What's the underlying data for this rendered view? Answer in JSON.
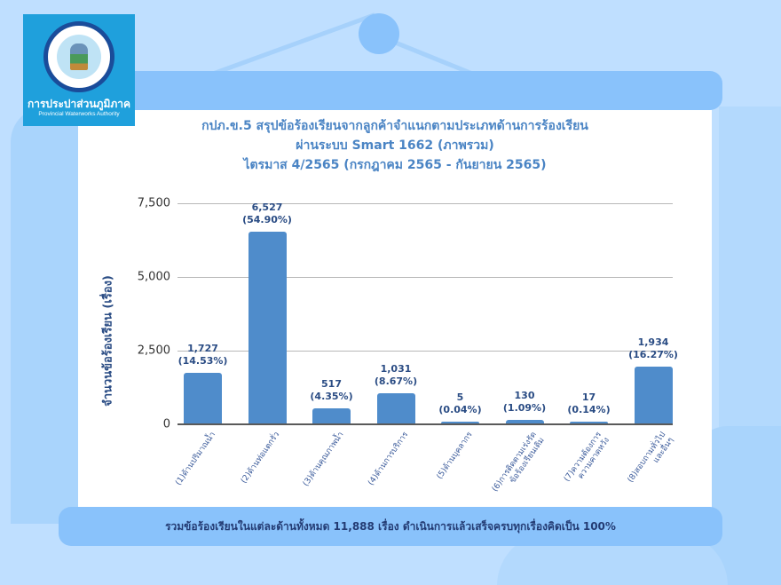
{
  "logo": {
    "title": "การประปาส่วนภูมิภาค",
    "subtitle": "Provincial Waterworks Authority"
  },
  "title": {
    "line1": "กปภ.ข.5 สรุปข้อร้องเรียนจากลูกค้าจำแนกตามประเภทด้านการร้องเรียน",
    "line2": "ผ่านระบบ Smart 1662 (ภาพรวม)",
    "line3": "ไตรมาส 4/2565 (กรกฎาคม 2565 - กันยายน 2565)"
  },
  "footer": {
    "summary": "รวมข้อร้องเรียนในแต่ละด้านทั้งหมด 11,888 เรื่อง ดำเนินการแล้วเสร็จครบทุกเรื่องคิดเป็น 100%"
  },
  "colors": {
    "bar": "#4f8ccb",
    "title": "#4a84c4",
    "label": "#2a4c84",
    "background": "#bfdfff",
    "accent": "#89c2fb"
  },
  "chart_data": {
    "type": "bar",
    "title": "กปภ.ข.5 สรุปข้อร้องเรียนจากลูกค้าจำแนกตามประเภทด้านการร้องเรียน ผ่านระบบ Smart 1662 (ภาพรวม) ไตรมาส 4/2565 (กรกฎาคม 2565 - กันยายน 2565)",
    "xlabel": "",
    "ylabel": "จำนวนข้อร้องเรียน (เรื่อง)",
    "ylim": [
      0,
      7500
    ],
    "yticks": [
      "0",
      "2,500",
      "5,000",
      "7,500"
    ],
    "grid": true,
    "legend": "none",
    "categories": [
      "(1)ด้านปริมาณน้ำ",
      "(2)ด้านท่อแตกรั่ว",
      "(3)ด้านคุณภาพน้ำ",
      "(4)ด้านการบริการ",
      "(5)ด้านบุคลากร",
      "(6)การติดตามเร่งรัด ข้อร้องเรียนเดิม",
      "(7)ความต้องการ ความคาดหวัง",
      "(8)สอบถามทั่วไป และอื่นๆ"
    ],
    "values": [
      1727,
      6527,
      517,
      1031,
      5,
      130,
      17,
      1934
    ],
    "value_labels": [
      "1,727",
      "6,527",
      "517",
      "1,031",
      "5",
      "130",
      "17",
      "1,934"
    ],
    "percent_labels": [
      "(14.53%)",
      "(54.90%)",
      "(4.35%)",
      "(8.67%)",
      "(0.04%)",
      "(1.09%)",
      "(0.14%)",
      "(16.27%)"
    ],
    "total": 11888
  }
}
